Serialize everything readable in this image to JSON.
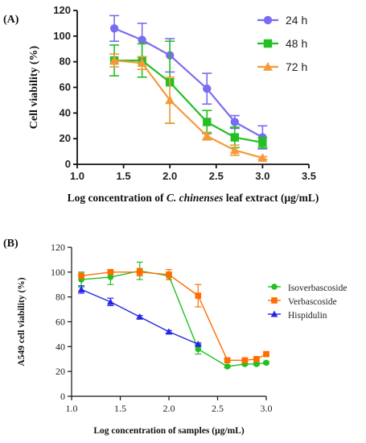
{
  "chart_data": [
    {
      "panel": "(A)",
      "type": "line",
      "xlabel_parts": [
        "Log concentration of ",
        "C. chinenses",
        " leaf extract (μg/mL)"
      ],
      "ylabel": "Cell viability (%)",
      "xlim": [
        1.0,
        3.5
      ],
      "ylim": [
        0,
        120
      ],
      "xticks": [
        "1.0",
        "1.5",
        "2.0",
        "2.5",
        "3.0",
        "3.5"
      ],
      "yticks": [
        "0",
        "20",
        "40",
        "60",
        "80",
        "100",
        "120"
      ],
      "legend_position": "top-right",
      "series": [
        {
          "name": "24 h",
          "color": "#7a6cf0",
          "marker": "circle",
          "x": [
            1.4,
            1.7,
            2.0,
            2.4,
            2.7,
            3.0
          ],
          "y": [
            106,
            97,
            85,
            59,
            33,
            21
          ],
          "err": [
            10,
            13,
            13,
            12,
            5,
            9
          ]
        },
        {
          "name": "48 h",
          "color": "#22c022",
          "marker": "square",
          "x": [
            1.4,
            1.7,
            2.0,
            2.4,
            2.7,
            3.0
          ],
          "y": [
            81,
            81,
            64,
            33,
            21,
            17
          ],
          "err": [
            12,
            13,
            32,
            9,
            8,
            4
          ]
        },
        {
          "name": "72 h",
          "color": "#f59a3a",
          "marker": "triangle",
          "x": [
            1.4,
            1.7,
            2.0,
            2.4,
            2.7,
            3.0
          ],
          "y": [
            81,
            79,
            50,
            22,
            11,
            5
          ],
          "err": [
            5,
            5,
            18,
            3,
            4,
            1
          ]
        }
      ]
    },
    {
      "panel": "(B)",
      "type": "line",
      "xlabel": "Log concentration of samples (μg/mL)",
      "ylabel": "A549 cell viability (%)",
      "xlim": [
        1.0,
        3.0
      ],
      "ylim": [
        0,
        120
      ],
      "xticks": [
        "1.0",
        "1.5",
        "2.0",
        "2.5",
        "3.0"
      ],
      "yticks": [
        "0",
        "20",
        "40",
        "60",
        "80",
        "100",
        "120"
      ],
      "legend_position": "right",
      "series": [
        {
          "name": "Isoverbascoside",
          "color": "#22c022",
          "marker": "circle",
          "x": [
            1.1,
            1.4,
            1.7,
            2.0,
            2.3,
            2.6,
            2.78,
            2.9,
            3.0
          ],
          "y": [
            94,
            96,
            101,
            97,
            38,
            24,
            26,
            26,
            27
          ],
          "err": [
            6,
            6,
            7,
            3,
            4,
            1,
            1,
            1,
            1
          ]
        },
        {
          "name": "Verbascoside",
          "color": "#ff6d00",
          "marker": "square",
          "x": [
            1.1,
            1.4,
            1.7,
            2.0,
            2.3,
            2.6,
            2.78,
            2.9,
            3.0
          ],
          "y": [
            97,
            100,
            100,
            98,
            81,
            29,
            29,
            30,
            34
          ],
          "err": [
            1,
            1,
            3,
            4,
            9,
            1,
            1,
            1,
            1
          ]
        },
        {
          "name": "Hispidulin",
          "color": "#2525e6",
          "marker": "triangle",
          "x": [
            1.1,
            1.4,
            1.7,
            2.0,
            2.3
          ],
          "y": [
            86,
            76,
            64,
            52,
            42
          ],
          "err": [
            3,
            3,
            1,
            1,
            1
          ]
        }
      ]
    }
  ]
}
